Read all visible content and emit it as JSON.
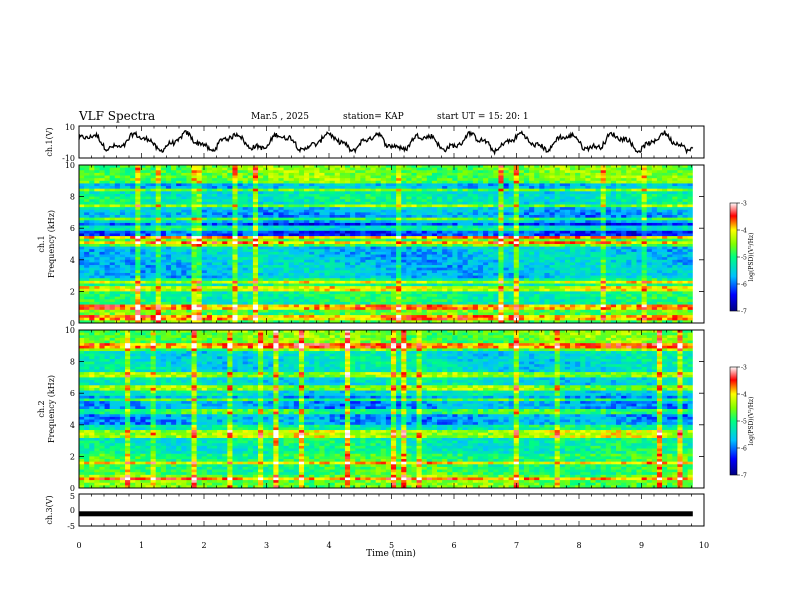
{
  "header": {
    "title": "VLF Spectra",
    "date": "Mar.5 , 2025",
    "station": "station= KAP",
    "start": "start UT = 15: 20: 1"
  },
  "chart_data": [
    {
      "type": "line",
      "id": "ch1-waveform",
      "ylabel": "ch.1(V)",
      "ylim": [
        -10,
        10
      ],
      "yticks": [
        "10",
        "-10"
      ],
      "xlim": [
        0,
        10
      ],
      "x_extent": 9.82,
      "description_series": "noisy oscillating waveform approx. between -6 and 6 V"
    },
    {
      "type": "heatmap",
      "id": "ch1-spectrogram",
      "ylabel_top": "ch.1",
      "ylabel": "Frequency (kHz)",
      "ylim": [
        0,
        10
      ],
      "yticks": [
        "0",
        "2",
        "4",
        "6",
        "8",
        "10"
      ],
      "xlim": [
        0,
        10
      ],
      "colorbar": {
        "label": "log(PSD)(V²/Hz)",
        "range": [
          -7,
          -3
        ],
        "ticks": [
          "-3",
          "-4",
          "-5",
          "-6",
          "-7"
        ]
      },
      "dominant_bands_khz": [
        0.3,
        1.0,
        2.2,
        2.6,
        5.0,
        5.4,
        6.0,
        6.6,
        7.4,
        8.4
      ]
    },
    {
      "type": "heatmap",
      "id": "ch2-spectrogram",
      "ylabel_top": "ch.2",
      "ylabel": "Frequency (kHz)",
      "ylim": [
        0,
        10
      ],
      "yticks": [
        "0",
        "2",
        "4",
        "6",
        "8",
        "10"
      ],
      "xlim": [
        0,
        10
      ],
      "colorbar": {
        "label": "log(PSD)(V²/Hz)",
        "range": [
          -7,
          -3
        ],
        "ticks": [
          "-3",
          "-4",
          "-5",
          "-6",
          "-7"
        ]
      },
      "dominant_bands_khz": [
        0.6,
        1.6,
        3.3,
        3.6,
        4.8,
        5.6,
        6.3,
        7.2,
        9.0
      ]
    },
    {
      "type": "line",
      "id": "ch3-waveform",
      "ylabel": "ch.3(V)",
      "ylim": [
        -5,
        5
      ],
      "yticks": [
        "5",
        "0",
        "-5"
      ],
      "xlim": [
        0,
        10
      ],
      "x_extent": 9.82,
      "constant_value": -1.2
    }
  ],
  "xaxis": {
    "label": "Time (min)",
    "ticks": [
      "0",
      "1",
      "2",
      "3",
      "4",
      "5",
      "6",
      "7",
      "8",
      "9",
      "10"
    ]
  }
}
